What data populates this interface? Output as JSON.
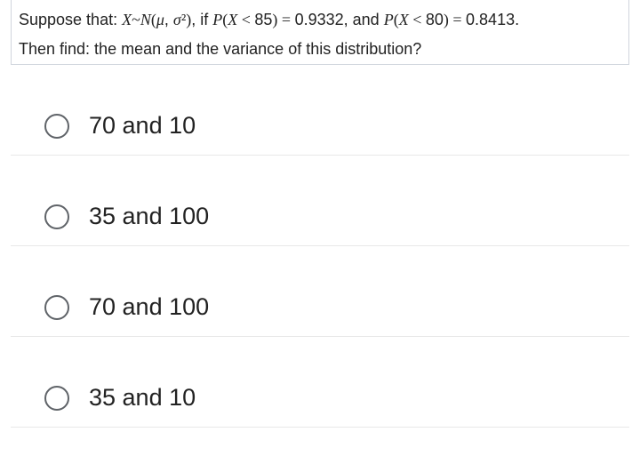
{
  "question": {
    "line1_parts": {
      "prefix": "Suppose that: ",
      "var_X": "X",
      "sim": "~",
      "N": "N",
      "lp": "(",
      "mu": "μ",
      "comma": ", ",
      "sigma": "σ",
      "sq": "²",
      "rp": ")",
      "mid1": ", if ",
      "P1": "P",
      "lp2": "(",
      "X2": "X",
      "lt1": " < ",
      "v85": "85",
      "rp2": ")",
      "eq1": " = ",
      "p1v": "0.9332",
      "mid2": ", and ",
      "P2": "P",
      "lp3": "(",
      "X3": "X",
      "lt2": " < ",
      "v80": "80",
      "rp3": ")",
      "eq2": " = ",
      "p2v": "0.8413",
      "dot": "."
    },
    "line2": "Then find: the mean and the variance of this distribution?"
  },
  "options": [
    {
      "label": "70 and 10"
    },
    {
      "label": "35 and 100"
    },
    {
      "label": "70 and 100"
    },
    {
      "label": "35 and 10"
    }
  ],
  "style": {
    "border_color": "#d0d5dd",
    "option_divider": "#e8e8e8",
    "radio_border": "#5f6368",
    "text_color": "#222222",
    "background": "#ffffff",
    "option_font_size": 27,
    "question_font_size": 18
  }
}
